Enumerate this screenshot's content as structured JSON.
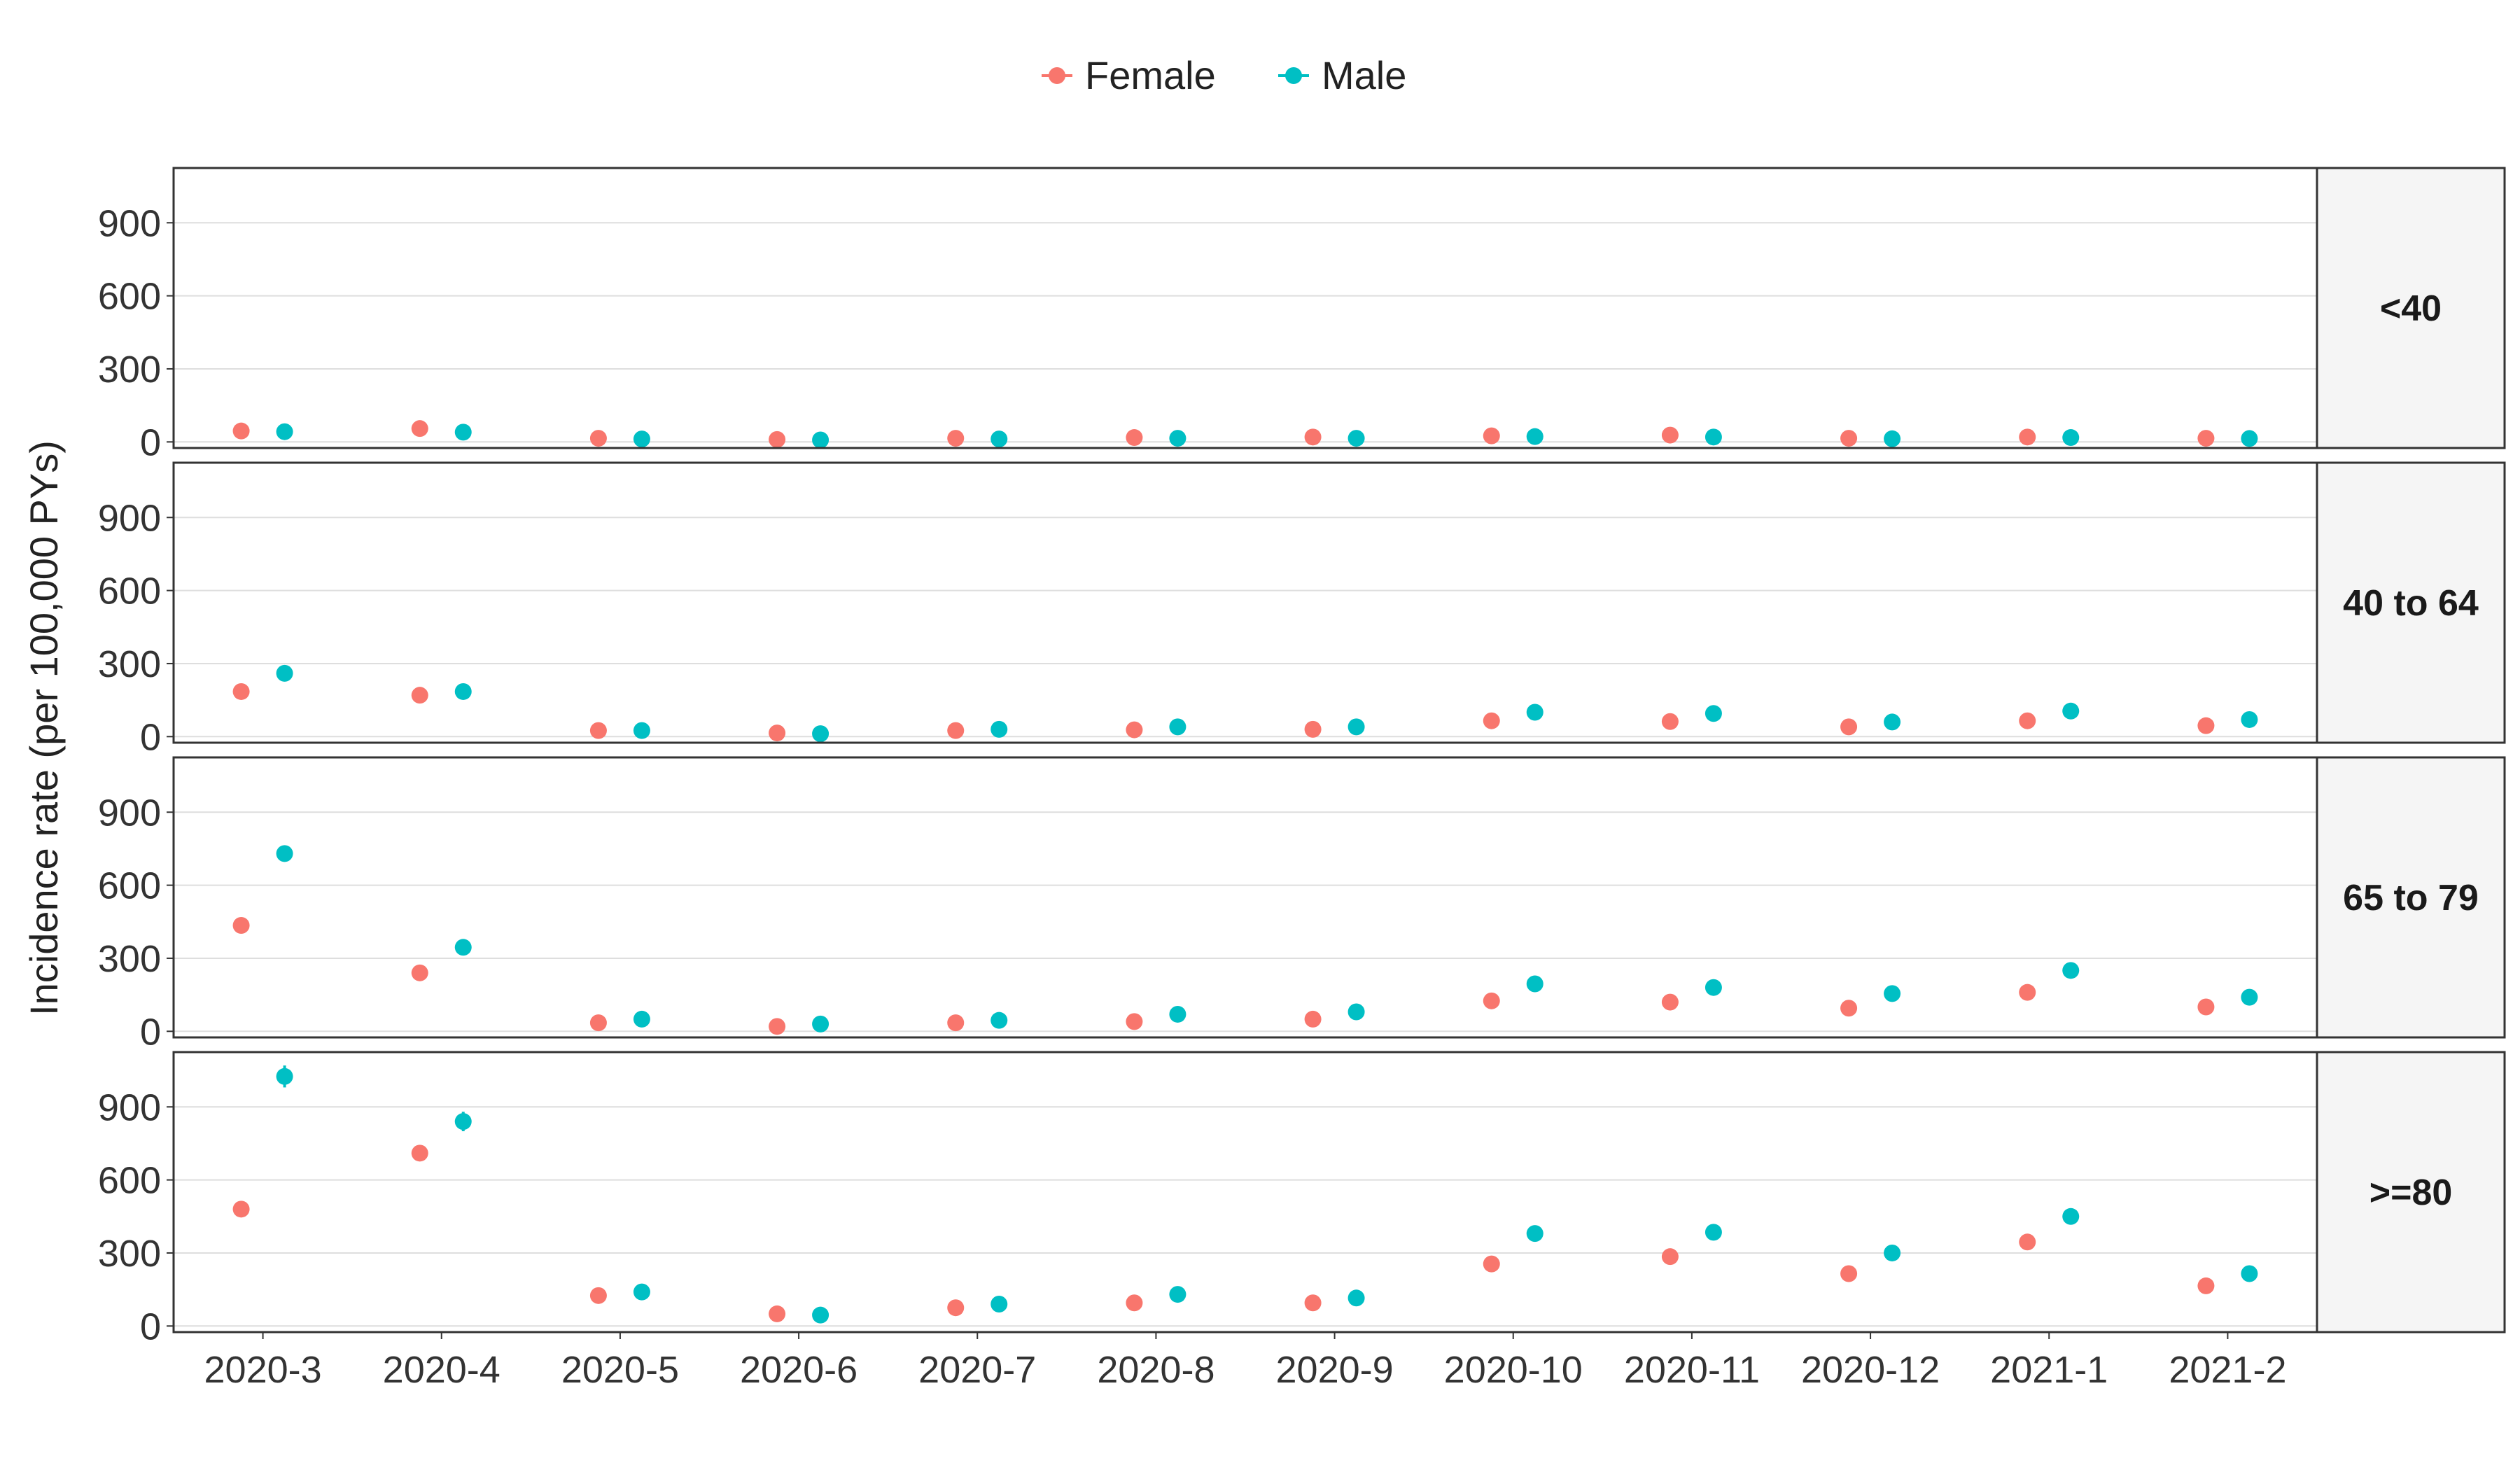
{
  "chart_data": {
    "type": "scatter",
    "ylabel": "Incidence rate (per 100,000 PYs)",
    "xlabel": "",
    "legend_position": "top",
    "grid": true,
    "categories": [
      "2020-3",
      "2020-4",
      "2020-5",
      "2020-6",
      "2020-7",
      "2020-8",
      "2020-9",
      "2020-10",
      "2020-11",
      "2020-12",
      "2021-1",
      "2021-2"
    ],
    "y_ticks": [
      0,
      300,
      600,
      900
    ],
    "ylim": [
      -25,
      1125
    ],
    "series_colors": {
      "Female": "#f8766d",
      "Male": "#00bfc4"
    },
    "legend": [
      "Female",
      "Male"
    ],
    "panels": [
      {
        "label": "<40",
        "series": [
          {
            "name": "Female",
            "values": [
              45,
              55,
              15,
              10,
              15,
              18,
              20,
              25,
              28,
              15,
              20,
              15
            ]
          },
          {
            "name": "Male",
            "values": [
              42,
              40,
              12,
              8,
              12,
              15,
              15,
              22,
              20,
              13,
              18,
              14
            ]
          }
        ]
      },
      {
        "label": "40 to 64",
        "series": [
          {
            "name": "Female",
            "values": [
              185,
              170,
              25,
              15,
              25,
              28,
              30,
              65,
              62,
              40,
              65,
              45
            ]
          },
          {
            "name": "Male",
            "values": [
              260,
              185,
              25,
              12,
              30,
              40,
              40,
              100,
              95,
              60,
              105,
              70
            ]
          }
        ]
      },
      {
        "label": "65 to 79",
        "series": [
          {
            "name": "Female",
            "values": [
              435,
              240,
              35,
              20,
              35,
              40,
              50,
              125,
              120,
              95,
              160,
              100
            ]
          },
          {
            "name": "Male",
            "values": [
              730,
              345,
              50,
              30,
              45,
              70,
              80,
              195,
              180,
              155,
              250,
              140
            ]
          }
        ]
      },
      {
        "label": ">=80",
        "series": [
          {
            "name": "Female",
            "values": [
              480,
              710,
              125,
              50,
              75,
              95,
              95,
              255,
              285,
              215,
              345,
              165
            ]
          },
          {
            "name": "Male",
            "values": [
              1025,
              840,
              140,
              45,
              90,
              130,
              115,
              380,
              385,
              300,
              450,
              215
            ]
          }
        ],
        "error_bars": [
          {
            "series": "Male",
            "category": "2020-3",
            "low": 980,
            "high": 1070
          },
          {
            "series": "Male",
            "category": "2020-4",
            "low": 800,
            "high": 880
          }
        ]
      }
    ]
  }
}
